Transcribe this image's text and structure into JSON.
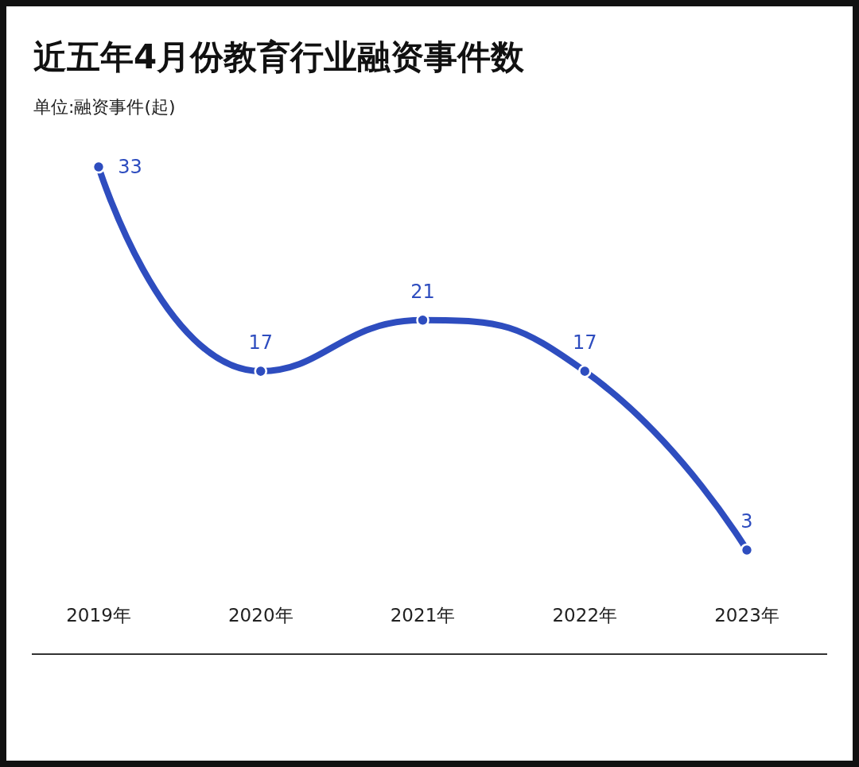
{
  "chart_data": {
    "type": "line",
    "title": "近五年4月份教育行业融资事件数",
    "subtitle": "单位:融资事件(起)",
    "categories": [
      "2019年",
      "2020年",
      "2021年",
      "2022年",
      "2023年"
    ],
    "series": [
      {
        "color": "#2e4dbf",
        "values": [
          33,
          17,
          21,
          17,
          3
        ]
      }
    ],
    "data_labels": true,
    "tick_labels": "x",
    "marker": "circle",
    "line_style": "solid",
    "grid": false
  }
}
